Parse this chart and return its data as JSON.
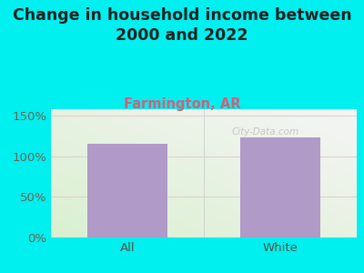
{
  "title": "Change in household income between\n2000 and 2022",
  "subtitle": "Farmington, AR",
  "categories": [
    "All",
    "White"
  ],
  "values": [
    115,
    123
  ],
  "bar_color": "#b09ac8",
  "background_color": "#00efef",
  "title_color": "#222222",
  "subtitle_color": "#d45f7a",
  "tick_color": "#666655",
  "xticklabel_color": "#555544",
  "yticks": [
    0,
    50,
    100,
    150
  ],
  "ylim": [
    0,
    158
  ],
  "title_fontsize": 12.5,
  "subtitle_fontsize": 10.5,
  "tick_fontsize": 9.5,
  "xlabel_fontsize": 9.5,
  "watermark": "City-Data.com",
  "gridline_color": "#ddcccc",
  "plot_bg_topleft": "#e8f5e2",
  "plot_bg_bottomright": "#f8f8f8"
}
